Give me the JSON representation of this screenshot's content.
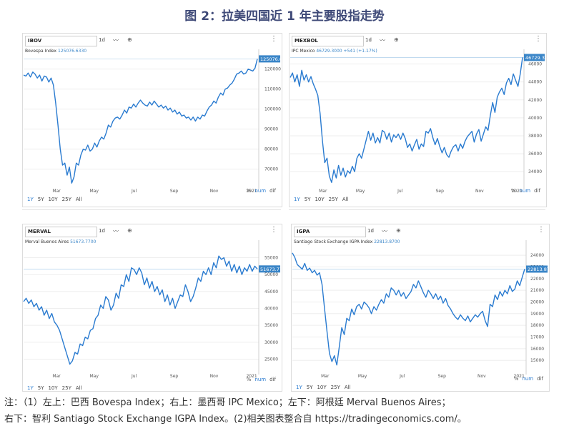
{
  "figure_title": "图 2：拉美四国近 1 年主要股指走势",
  "note_line1": "注：（1）左上：巴西 Bovespa Index；右上：墨西哥 IPC Mexico；左下：阿根廷 Merval Buenos Aires；",
  "note_line2": "右下：智利 Santiago Stock Exchange IGPA Index。(2)相关图表整合自 https://tradingeconomics.com/。",
  "toolbar": {
    "interval": "1d",
    "line_icon": "line-chart-icon",
    "add_icon": "add-icon",
    "menu_icon": "more-vert-icon"
  },
  "range_buttons": [
    "1Y",
    "5Y",
    "10Y",
    "25Y",
    "All"
  ],
  "unit_buttons": [
    "%",
    "num",
    "dif"
  ],
  "colors": {
    "line": "#2a7bd0",
    "tag": "#3b86c8",
    "grid": "#eeeeee",
    "title": "#3f4a78"
  },
  "chart_data": [
    {
      "type": "line",
      "symbol": "IBOV",
      "legend_name": "Bovespa Index",
      "legend_value": "125076.6330",
      "last_tag": "125076.6",
      "xticks": [
        "Mar",
        "May",
        "Jul",
        "Sep",
        "Nov",
        "2021"
      ],
      "yticks": [
        "70000",
        "80000",
        "90000",
        "100000",
        "110000",
        "120000"
      ],
      "ylim": [
        62000,
        127000
      ],
      "values": [
        117000,
        116500,
        118000,
        116000,
        118500,
        117500,
        115500,
        117000,
        114000,
        116500,
        116000,
        113500,
        115500,
        112000,
        103000,
        92000,
        80000,
        72000,
        73000,
        67000,
        71000,
        63000,
        66000,
        73000,
        72000,
        77000,
        80000,
        79500,
        82000,
        79000,
        80000,
        83000,
        81000,
        84000,
        86000,
        85000,
        88000,
        92000,
        91000,
        94000,
        95500,
        96000,
        95000,
        97000,
        99500,
        98000,
        101000,
        100500,
        102500,
        101000,
        103000,
        104500,
        103000,
        102000,
        101500,
        103500,
        102000,
        104000,
        102500,
        101000,
        102000,
        100500,
        101500,
        99500,
        100500,
        98500,
        99500,
        97500,
        98500,
        96500,
        97000,
        95500,
        96000,
        94500,
        96000,
        94000,
        96000,
        95000,
        97000,
        96500,
        99000,
        101000,
        102000,
        104000,
        103000,
        106000,
        108000,
        107000,
        110000,
        110500,
        112000,
        113000,
        115000,
        117500,
        118000,
        119000,
        117500,
        118000,
        120000,
        119500,
        119000,
        120500,
        125076
      ]
    },
    {
      "type": "line",
      "symbol": "MEXBOL",
      "legend_name": "IPC Mexico",
      "legend_value": "46729.3000",
      "legend_change": "+541 (+1.17%)",
      "last_tag": "46729.30",
      "xticks": [
        "Mar",
        "May",
        "Jul",
        "Sep",
        "Nov",
        "2021"
      ],
      "yticks": [
        "34000",
        "36000",
        "38000",
        "40000",
        "42000",
        "44000",
        "46000"
      ],
      "ylim": [
        32500,
        47000
      ],
      "values": [
        44500,
        45000,
        44000,
        44800,
        43500,
        45300,
        44200,
        44800,
        44000,
        44600,
        43800,
        43200,
        42500,
        40500,
        37500,
        35000,
        35500,
        33500,
        32800,
        34200,
        33300,
        34700,
        33600,
        34400,
        33400,
        34100,
        33800,
        34600,
        34000,
        35500,
        36000,
        35500,
        36500,
        37500,
        38500,
        37500,
        38300,
        37200,
        37800,
        37200,
        38600,
        38400,
        37600,
        38300,
        37300,
        38100,
        37800,
        38200,
        37600,
        38300,
        37700,
        36700,
        37100,
        36300,
        37000,
        37600,
        36500,
        37100,
        36800,
        38500,
        38300,
        38800,
        37800,
        37000,
        37700,
        36800,
        36100,
        36700,
        35900,
        35600,
        36300,
        36800,
        37000,
        36300,
        37100,
        36600,
        37400,
        37900,
        38200,
        38500,
        37300,
        38200,
        38700,
        37400,
        38200,
        39000,
        38600,
        40300,
        41700,
        40600,
        42300,
        42900,
        43300,
        42600,
        43900,
        44400,
        43700,
        44900,
        44200,
        43500,
        44900,
        46729
      ]
    },
    {
      "type": "line",
      "symbol": "MERVAL",
      "legend_name": "Merval Buenos Aires",
      "legend_value": "51673.7700",
      "last_tag": "51673.77",
      "xticks": [
        "Mar",
        "May",
        "Jul",
        "Sep",
        "Nov",
        "2021"
      ],
      "yticks": [
        "25000",
        "30000",
        "35000",
        "40000",
        "45000",
        "50000",
        "55000"
      ],
      "ylim": [
        21500,
        58500
      ],
      "values": [
        42000,
        43000,
        41500,
        42500,
        40500,
        41500,
        39500,
        40500,
        38000,
        39500,
        37000,
        38500,
        36000,
        35000,
        33500,
        31000,
        28500,
        26000,
        23500,
        24500,
        27000,
        26500,
        29500,
        29000,
        31500,
        31000,
        33500,
        34000,
        37000,
        38000,
        41000,
        40000,
        43500,
        42500,
        39500,
        41000,
        44500,
        43000,
        47000,
        46500,
        50000,
        48000,
        52000,
        51500,
        50000,
        52000,
        50500,
        47000,
        49000,
        46000,
        48000,
        45000,
        46500,
        44000,
        45500,
        42000,
        44000,
        41000,
        43000,
        40000,
        42000,
        44000,
        43500,
        47000,
        45000,
        42000,
        43500,
        46000,
        49000,
        48000,
        51000,
        50000,
        52000,
        50000,
        53500,
        52000,
        55500,
        54500,
        55000,
        52500,
        54000,
        51000,
        53000,
        50500,
        52500,
        50000,
        52000,
        51000,
        53000,
        51000,
        52500,
        51673
      ]
    },
    {
      "type": "line",
      "symbol": "IGPA",
      "legend_name": "Santiago Stock Exchange IGPA Index",
      "legend_value": "22813.8700",
      "last_tag": "22813.87",
      "xticks": [
        "Mar",
        "May",
        "Jul",
        "Sep",
        "Nov",
        "2021"
      ],
      "yticks": [
        "15000",
        "16000",
        "17000",
        "18000",
        "19000",
        "20000",
        "21000",
        "22000",
        "23000",
        "24000"
      ],
      "ylim": [
        14400,
        24800
      ],
      "values": [
        24200,
        23800,
        23200,
        23000,
        22800,
        23300,
        22700,
        22900,
        22500,
        22700,
        22300,
        22500,
        21500,
        19500,
        17500,
        15600,
        14900,
        15400,
        14600,
        16200,
        17800,
        17200,
        18600,
        18400,
        19400,
        18900,
        19600,
        19800,
        19400,
        20000,
        19800,
        19500,
        19000,
        19600,
        19300,
        19800,
        20200,
        19900,
        20700,
        20400,
        21200,
        21000,
        20600,
        21000,
        20500,
        20800,
        20300,
        20600,
        20900,
        21500,
        21200,
        21800,
        21300,
        20800,
        20400,
        21000,
        20700,
        20300,
        20700,
        20200,
        20500,
        19900,
        20300,
        19700,
        19400,
        19000,
        18700,
        18500,
        18900,
        18600,
        18400,
        18800,
        18300,
        18600,
        18900,
        18700,
        19000,
        19200,
        18400,
        17900,
        19800,
        19600,
        20600,
        20200,
        20900,
        20500,
        21000,
        20700,
        21400,
        20900,
        21100,
        21800,
        21400,
        22100,
        22813
      ]
    }
  ]
}
